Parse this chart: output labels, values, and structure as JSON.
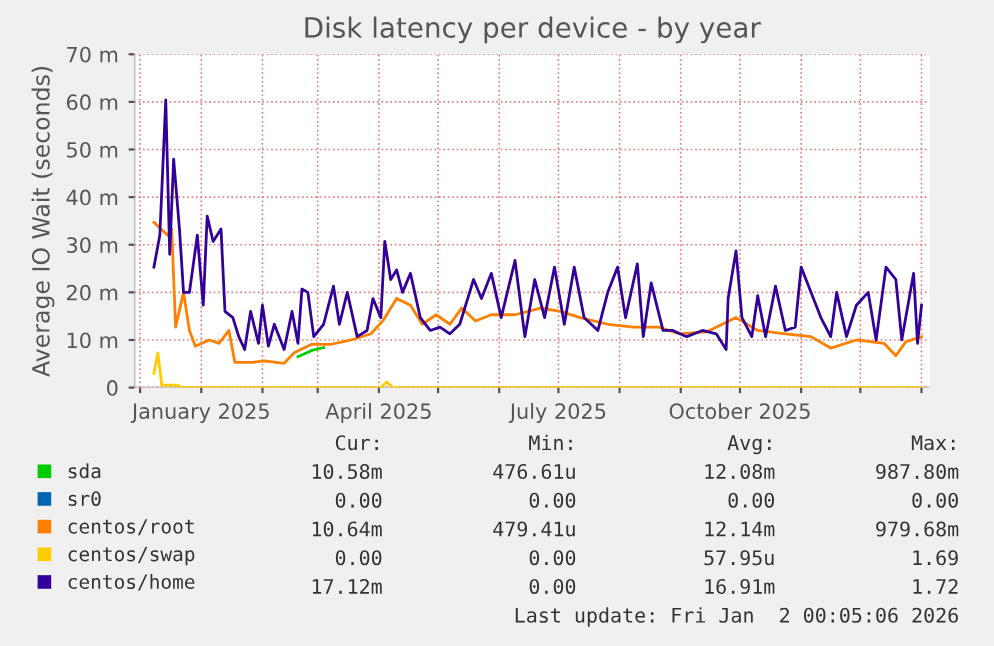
{
  "chart_data": {
    "type": "line",
    "title": "Disk latency per device - by year",
    "ylabel": "Average IO Wait (seconds)",
    "xlim": [
      "2024-11-28",
      "2026-01-05"
    ],
    "ylim": [
      0,
      70
    ],
    "yticks": [
      0,
      {
        "value": 10,
        "label": "10 m"
      },
      {
        "value": 20,
        "label": "20 m"
      },
      {
        "value": 30,
        "label": "30 m"
      },
      {
        "value": 40,
        "label": "40 m"
      },
      {
        "value": 50,
        "label": "50 m"
      },
      {
        "value": 60,
        "label": "60 m"
      },
      {
        "value": 70,
        "label": "70 m"
      }
    ],
    "xticks": [
      {
        "value": "2024-12-01",
        "label": null
      },
      {
        "value": "2025-01-01",
        "label": "January 2025"
      },
      {
        "value": "2025-02-01",
        "label": null
      },
      {
        "value": "2025-03-01",
        "label": null
      },
      {
        "value": "2025-04-01",
        "label": "April 2025"
      },
      {
        "value": "2025-05-01",
        "label": null
      },
      {
        "value": "2025-06-01",
        "label": null
      },
      {
        "value": "2025-07-01",
        "label": "July 2025"
      },
      {
        "value": "2025-08-01",
        "label": null
      },
      {
        "value": "2025-09-01",
        "label": null
      },
      {
        "value": "2025-10-01",
        "label": "October 2025"
      },
      {
        "value": "2025-11-01",
        "label": null
      },
      {
        "value": "2025-12-01",
        "label": null
      },
      {
        "value": "2026-01-01",
        "label": null
      }
    ],
    "grid": true,
    "legend": "bottom",
    "marker": "none",
    "line_style": "solid",
    "series": [
      {
        "name": "sda",
        "color": "#00cc00",
        "x": [
          "2025-02-19",
          "2025-02-26",
          "2025-03-04"
        ],
        "values": [
          6.5,
          7.8,
          8.4
        ]
      },
      {
        "name": "sr0",
        "color": "#0066b3"
      },
      {
        "name": "centos/root",
        "color": "#ff8000",
        "x": [
          "2024-12-08",
          "2024-12-15",
          "2024-12-17",
          "2024-12-19",
          "2024-12-23",
          "2024-12-26",
          "2024-12-29",
          "2025-01-05",
          "2025-01-10",
          "2025-01-15",
          "2025-01-18",
          "2025-01-27",
          "2025-02-02",
          "2025-02-12",
          "2025-02-17",
          "2025-02-26",
          "2025-03-08",
          "2025-03-18",
          "2025-03-28",
          "2025-04-03",
          "2025-04-10",
          "2025-04-17",
          "2025-04-23",
          "2025-04-30",
          "2025-05-07",
          "2025-05-13",
          "2025-05-20",
          "2025-05-28",
          "2025-06-09",
          "2025-06-22",
          "2025-07-02",
          "2025-07-12",
          "2025-07-26",
          "2025-08-08",
          "2025-08-21",
          "2025-08-31",
          "2025-09-14",
          "2025-09-29",
          "2025-10-10",
          "2025-10-24",
          "2025-11-06",
          "2025-11-16",
          "2025-11-29",
          "2025-12-13",
          "2025-12-19",
          "2025-12-24",
          "2026-01-01"
        ],
        "values": [
          34.7,
          32,
          33.3,
          12.7,
          20,
          12,
          8.7,
          10,
          9.3,
          12,
          5.3,
          5.3,
          5.6,
          5.1,
          7.3,
          9.1,
          9.1,
          10,
          11.3,
          14,
          18.7,
          17.3,
          13.3,
          15.3,
          13.3,
          16.7,
          14,
          15.3,
          15.3,
          16.7,
          16,
          14.7,
          13.3,
          12.7,
          12.7,
          11.3,
          11.7,
          14.7,
          12,
          11.3,
          10.7,
          8.3,
          10,
          9.3,
          6.7,
          9.6,
          10.7
        ]
      },
      {
        "name": "centos/swap",
        "color": "#ffcc00",
        "x": [
          "2024-12-08",
          "2024-12-10",
          "2024-12-12",
          "2024-12-20",
          "2024-12-22",
          "2025-04-02",
          "2025-04-05",
          "2025-04-08",
          "2026-01-01"
        ],
        "values": [
          3,
          7.3,
          0.5,
          0.5,
          0,
          0,
          1.2,
          0,
          0
        ]
      },
      {
        "name": "centos/home",
        "color": "#330099",
        "x": [
          "2024-12-08",
          "2024-12-11",
          "2024-12-14",
          "2024-12-16",
          "2024-12-18",
          "2024-12-21",
          "2024-12-23",
          "2024-12-26",
          "2024-12-30",
          "2025-01-02",
          "2025-01-04",
          "2025-01-07",
          "2025-01-11",
          "2025-01-13",
          "2025-01-17",
          "2025-01-20",
          "2025-01-23",
          "2025-01-26",
          "2025-01-30",
          "2025-02-01",
          "2025-02-04",
          "2025-02-07",
          "2025-02-12",
          "2025-02-16",
          "2025-02-19",
          "2025-02-21",
          "2025-02-24",
          "2025-02-27",
          "2025-03-04",
          "2025-03-09",
          "2025-03-12",
          "2025-03-16",
          "2025-03-21",
          "2025-03-26",
          "2025-03-29",
          "2025-04-02",
          "2025-04-04",
          "2025-04-07",
          "2025-04-10",
          "2025-04-13",
          "2025-04-17",
          "2025-04-22",
          "2025-04-27",
          "2025-05-02",
          "2025-05-07",
          "2025-05-12",
          "2025-05-19",
          "2025-05-23",
          "2025-05-28",
          "2025-06-02",
          "2025-06-09",
          "2025-06-14",
          "2025-06-19",
          "2025-06-24",
          "2025-06-29",
          "2025-07-04",
          "2025-07-09",
          "2025-07-14",
          "2025-07-21",
          "2025-07-26",
          "2025-07-31",
          "2025-08-04",
          "2025-08-10",
          "2025-08-13",
          "2025-08-17",
          "2025-08-23",
          "2025-08-28",
          "2025-09-04",
          "2025-09-12",
          "2025-09-19",
          "2025-09-24",
          "2025-09-25",
          "2025-09-29",
          "2025-10-02",
          "2025-10-07",
          "2025-10-10",
          "2025-10-14",
          "2025-10-19",
          "2025-10-24",
          "2025-10-29",
          "2025-11-01",
          "2025-11-06",
          "2025-11-11",
          "2025-11-16",
          "2025-11-19",
          "2025-11-24",
          "2025-11-29",
          "2025-12-05",
          "2025-12-09",
          "2025-12-14",
          "2025-12-19",
          "2025-12-22",
          "2025-12-28",
          "2025-12-30",
          "2026-01-01"
        ],
        "values": [
          25.3,
          32,
          60.4,
          28,
          48,
          33,
          20,
          20,
          32,
          17.3,
          36,
          30.7,
          33.3,
          16,
          14.7,
          10.7,
          8,
          16,
          9.3,
          17.3,
          8.7,
          13.3,
          8,
          16,
          9.3,
          20.7,
          20,
          10.7,
          13.3,
          21.3,
          13.3,
          20,
          10.7,
          12,
          18.7,
          14.7,
          30.7,
          22.7,
          24.7,
          20,
          24,
          14.7,
          12,
          12.7,
          11.3,
          13.3,
          22.7,
          18.7,
          24,
          14.7,
          26.7,
          10.7,
          22.7,
          14.7,
          25.3,
          13.3,
          25.3,
          14.7,
          12,
          20,
          25.3,
          14.7,
          26,
          10.7,
          22,
          12,
          12,
          10.7,
          12,
          11.3,
          8,
          18.7,
          28.7,
          14.7,
          10.7,
          19.3,
          10.7,
          21.3,
          12,
          12.7,
          25.3,
          20,
          14.7,
          10.7,
          20,
          10.7,
          17.3,
          20,
          10,
          25.3,
          22.7,
          10,
          24,
          9.3,
          17.3
        ]
      }
    ],
    "annotations": [
      "Cur:",
      "Min:",
      "Avg:",
      "Max:",
      "10.58m",
      "476.61u",
      "12.08m",
      "987.80m",
      "0.00",
      "0.00",
      "0.00",
      "0.00",
      "10.64m",
      "479.41u",
      "12.14m",
      "979.68m",
      "0.00",
      "0.00",
      "57.95u",
      "1.69",
      "17.12m",
      "0.00",
      "16.91m",
      "1.72",
      "Last update: Fri Jan  2 00:05:06 2026"
    ]
  }
}
